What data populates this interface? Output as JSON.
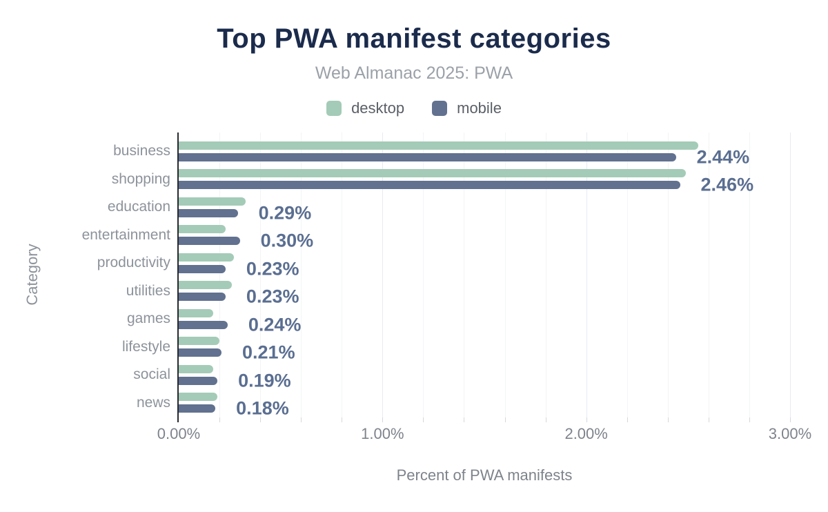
{
  "chart_data": {
    "type": "bar",
    "orientation": "horizontal",
    "title": "Top PWA manifest categories",
    "subtitle": "Web Almanac 2025: PWA",
    "xlabel": "Percent of PWA manifests",
    "ylabel": "Category",
    "categories": [
      "business",
      "shopping",
      "education",
      "entertainment",
      "productivity",
      "utilities",
      "games",
      "lifestyle",
      "social",
      "news"
    ],
    "series": [
      {
        "name": "desktop",
        "color": "#a4cbb7",
        "values": [
          2.55,
          2.49,
          0.33,
          0.23,
          0.27,
          0.26,
          0.17,
          0.2,
          0.17,
          0.19
        ]
      },
      {
        "name": "mobile",
        "color": "#61718f",
        "values": [
          2.44,
          2.46,
          0.29,
          0.3,
          0.23,
          0.23,
          0.24,
          0.21,
          0.19,
          0.18
        ]
      }
    ],
    "value_labels": {
      "series": "mobile",
      "values": [
        "2.44%",
        "2.46%",
        "0.29%",
        "0.30%",
        "0.23%",
        "0.23%",
        "0.24%",
        "0.21%",
        "0.19%",
        "0.18%"
      ]
    },
    "xlim": [
      0,
      3
    ],
    "xticks": [
      "0.00%",
      "1.00%",
      "2.00%",
      "3.00%"
    ],
    "minor_tick_interval": 0.2,
    "grid": "vertical-minor-and-major",
    "legend_position": "top",
    "colors": {
      "title": "#1b2b4c",
      "subtitle": "#9ba1a8",
      "category_label": "#8d939b",
      "value_label": "#5a6e91",
      "tick_label": "#7e838b",
      "axis_line": "#27292e",
      "gridline_minor": "#f3f4f6",
      "gridline_major": "#e8eaee"
    }
  }
}
